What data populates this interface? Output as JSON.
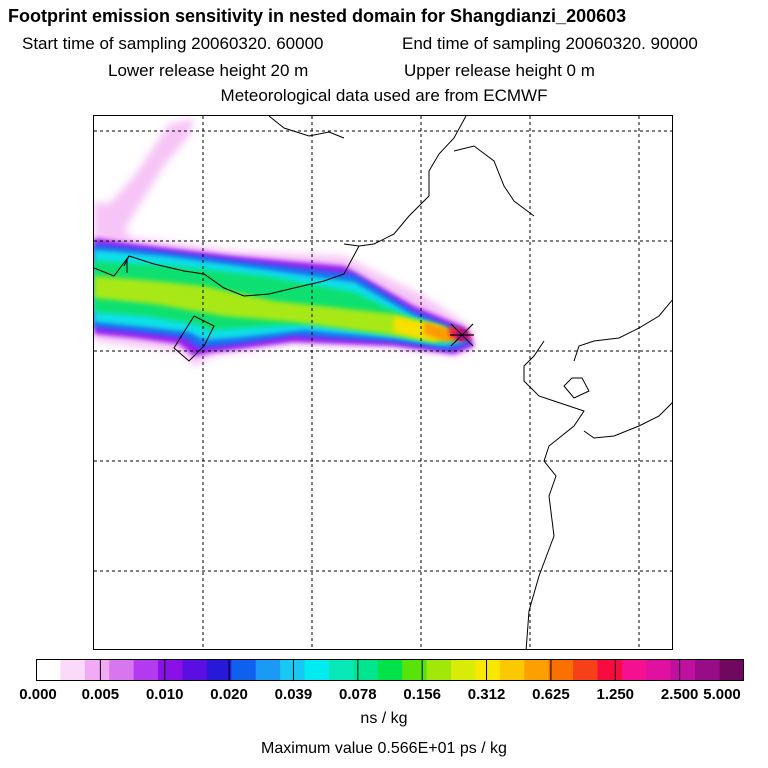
{
  "header": {
    "title": "Footprint emission sensitivity in nested domain for Shangdianzi_200603",
    "start_label": "Start time of sampling 20060320. 60000",
    "end_label": "End time of sampling 20060320. 90000",
    "lower_label": "Lower release height   20 m",
    "upper_label": "Upper release height    0 m",
    "met_label": "Meteorological data used are from ECMWF"
  },
  "colorbar": {
    "tick_labels": [
      "0.000",
      "0.005",
      "0.010",
      "0.020",
      "0.039",
      "0.078",
      "0.156",
      "0.312",
      "0.625",
      "1.250",
      "2.500",
      "5.000"
    ],
    "colors": [
      "#ffffff",
      "#fbd9fb",
      "#f2aaf5",
      "#d776ef",
      "#b43af0",
      "#8a10e8",
      "#5a0ee0",
      "#2818d8",
      "#1060f0",
      "#1a9af5",
      "#18c8f2",
      "#00ecf0",
      "#08e8b8",
      "#00e690",
      "#00e24a",
      "#58e40a",
      "#a0e80a",
      "#d8ec08",
      "#f8e800",
      "#fcc800",
      "#fca000",
      "#fc7000",
      "#f84018",
      "#f80c40",
      "#f41090",
      "#e010a0",
      "#c010a0",
      "#980c88",
      "#700860"
    ],
    "unit": "ns / kg",
    "max_value_text": "Maximum value  0.566E+01 ps / kg"
  },
  "map": {
    "plume_colors": {
      "pink_light": "#f6c4f6",
      "violet": "#9c1ef0",
      "blue": "#1e6cf0",
      "cyan": "#10e0e8",
      "green": "#10e070",
      "lime": "#a8e818",
      "yellow": "#f8e000",
      "orange": "#fc9a00",
      "red": "#f01848",
      "magenta": "#c00c90"
    },
    "receptor_icon": "receptor-cross-icon"
  }
}
